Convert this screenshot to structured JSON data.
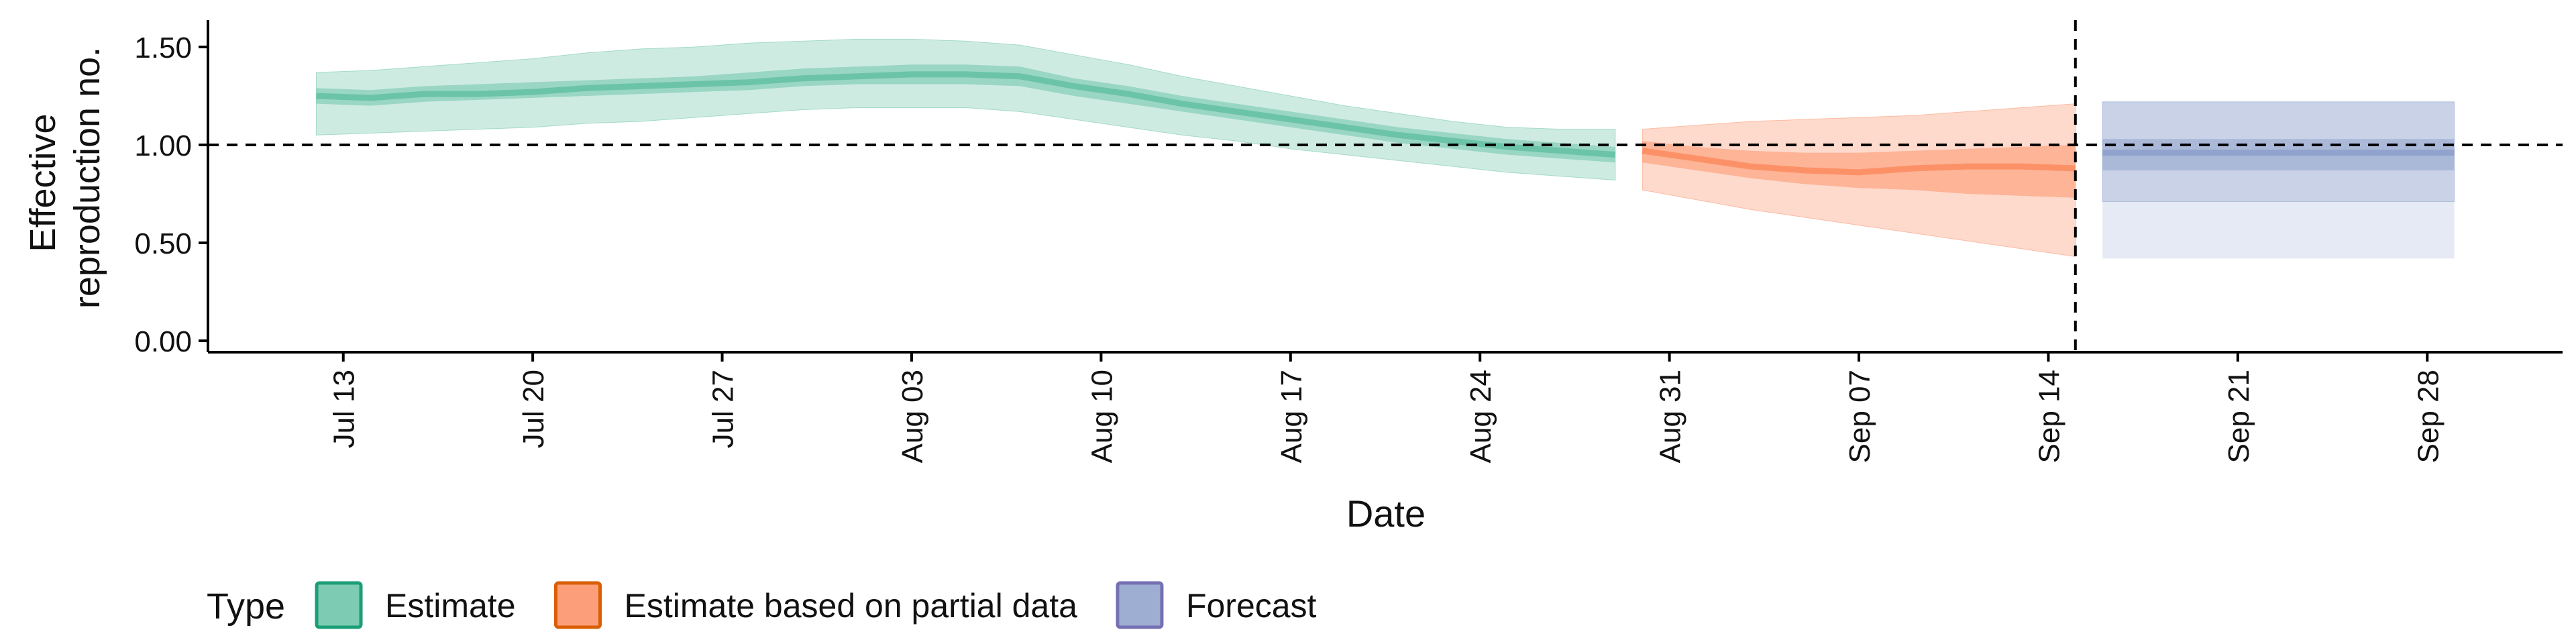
{
  "chart_data": {
    "type": "area",
    "xlabel": "Date",
    "ylabel_lines": [
      "Effective",
      "reproduction no."
    ],
    "ylim": [
      0,
      1.6
    ],
    "y_ticks": [
      0.0,
      0.5,
      1.0,
      1.5
    ],
    "y_tick_labels": [
      "0.00",
      "0.50",
      "1.00",
      "1.50"
    ],
    "x_range": [
      "2020-07-08",
      "2020-10-03"
    ],
    "x_ticks": [
      "2020-07-13",
      "2020-07-20",
      "2020-07-27",
      "2020-08-03",
      "2020-08-10",
      "2020-08-17",
      "2020-08-24",
      "2020-08-31",
      "2020-09-07",
      "2020-09-14",
      "2020-09-21",
      "2020-09-28"
    ],
    "x_tick_labels": [
      "Jul 13",
      "Jul 20",
      "Jul 27",
      "Aug 03",
      "Aug 10",
      "Aug 17",
      "Aug 24",
      "Aug 31",
      "Sep 07",
      "Sep 14",
      "Sep 21",
      "Sep 28"
    ],
    "reference_hline": 1.0,
    "reference_vline": "2020-09-15",
    "grid": false,
    "legend": {
      "title": "Type",
      "position": "bottom",
      "items": [
        "Estimate",
        "Estimate based on partial data",
        "Forecast"
      ]
    },
    "series": [
      {
        "name": "Estimate",
        "color": "#1b9e77",
        "fill": "#66c2a5",
        "x": [
          "2020-07-12",
          "2020-07-14",
          "2020-07-16",
          "2020-07-18",
          "2020-07-20",
          "2020-07-22",
          "2020-07-24",
          "2020-07-26",
          "2020-07-28",
          "2020-07-30",
          "2020-08-01",
          "2020-08-03",
          "2020-08-05",
          "2020-08-07",
          "2020-08-09",
          "2020-08-11",
          "2020-08-13",
          "2020-08-15",
          "2020-08-17",
          "2020-08-19",
          "2020-08-21",
          "2020-08-23",
          "2020-08-25",
          "2020-08-27",
          "2020-08-29"
        ],
        "median": [
          1.25,
          1.24,
          1.26,
          1.26,
          1.27,
          1.29,
          1.3,
          1.31,
          1.32,
          1.34,
          1.35,
          1.36,
          1.36,
          1.35,
          1.3,
          1.26,
          1.21,
          1.17,
          1.13,
          1.09,
          1.05,
          1.02,
          0.99,
          0.97,
          0.95
        ],
        "lower_50": [
          1.21,
          1.2,
          1.22,
          1.23,
          1.24,
          1.25,
          1.26,
          1.27,
          1.28,
          1.3,
          1.31,
          1.31,
          1.31,
          1.3,
          1.25,
          1.21,
          1.17,
          1.13,
          1.09,
          1.05,
          1.01,
          0.98,
          0.95,
          0.93,
          0.91
        ],
        "upper_50": [
          1.29,
          1.28,
          1.3,
          1.31,
          1.32,
          1.33,
          1.34,
          1.35,
          1.37,
          1.39,
          1.4,
          1.41,
          1.41,
          1.4,
          1.34,
          1.3,
          1.25,
          1.21,
          1.17,
          1.13,
          1.09,
          1.06,
          1.03,
          1.01,
          0.99
        ],
        "lower_90": [
          1.05,
          1.06,
          1.07,
          1.08,
          1.09,
          1.11,
          1.12,
          1.14,
          1.16,
          1.18,
          1.19,
          1.19,
          1.19,
          1.17,
          1.13,
          1.09,
          1.05,
          1.02,
          0.98,
          0.95,
          0.92,
          0.89,
          0.86,
          0.84,
          0.82
        ],
        "upper_90": [
          1.37,
          1.38,
          1.4,
          1.42,
          1.44,
          1.47,
          1.49,
          1.5,
          1.52,
          1.53,
          1.54,
          1.54,
          1.53,
          1.51,
          1.46,
          1.41,
          1.35,
          1.3,
          1.25,
          1.2,
          1.16,
          1.12,
          1.09,
          1.08,
          1.08
        ]
      },
      {
        "name": "Estimate based on partial data",
        "color": "#d95f02",
        "fill": "#fc8d62",
        "x": [
          "2020-08-30",
          "2020-09-01",
          "2020-09-03",
          "2020-09-05",
          "2020-09-07",
          "2020-09-09",
          "2020-09-11",
          "2020-09-13",
          "2020-09-15"
        ],
        "median": [
          0.97,
          0.93,
          0.89,
          0.87,
          0.86,
          0.88,
          0.89,
          0.89,
          0.88
        ],
        "lower_50": [
          0.91,
          0.87,
          0.83,
          0.8,
          0.78,
          0.77,
          0.75,
          0.74,
          0.73
        ],
        "upper_50": [
          1.02,
          0.99,
          0.97,
          0.96,
          0.96,
          0.97,
          0.98,
          0.99,
          1.0
        ],
        "lower_90": [
          0.77,
          0.72,
          0.67,
          0.63,
          0.59,
          0.55,
          0.51,
          0.47,
          0.43
        ],
        "upper_90": [
          1.08,
          1.1,
          1.12,
          1.13,
          1.14,
          1.15,
          1.17,
          1.19,
          1.21
        ]
      },
      {
        "name": "Forecast",
        "color": "#7570b3",
        "fill": "#8da0cb",
        "x": [
          "2020-09-16",
          "2020-09-29"
        ],
        "median": [
          0.96,
          0.96
        ],
        "lower_50": [
          0.87,
          0.87
        ],
        "upper_50": [
          1.03,
          1.03
        ],
        "lower_90": [
          0.71,
          0.71
        ],
        "upper_90": [
          1.22,
          1.22
        ],
        "lower_95": [
          0.42,
          0.42
        ],
        "upper_95": [
          1.22,
          1.22
        ]
      }
    ]
  }
}
